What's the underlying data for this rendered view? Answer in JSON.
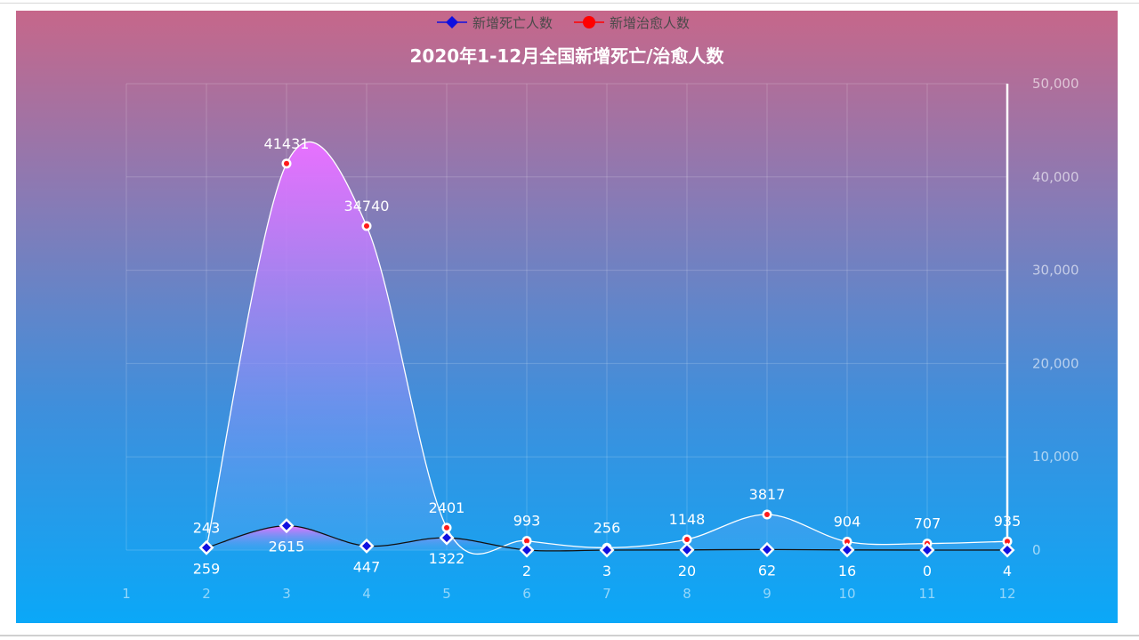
{
  "chart_data": {
    "type": "line",
    "title": "2020年1-12月全国新增死亡/治愈人数",
    "x": [
      "1",
      "2",
      "3",
      "4",
      "5",
      "6",
      "7",
      "8",
      "9",
      "10",
      "11",
      "12"
    ],
    "legend": {
      "placement": "top-center"
    },
    "yaxis": {
      "position": "right",
      "ylim": [
        0,
        50000
      ],
      "ticks": [
        "0",
        "10,000",
        "20,000",
        "30,000",
        "40,000",
        "50,000"
      ]
    },
    "grid": true,
    "series": [
      {
        "name": "新增死亡人数",
        "marker": "diamond",
        "legend_color": "#1010e0",
        "line_color": "#111111",
        "values": [
          null,
          259,
          2615,
          447,
          1322,
          2,
          3,
          20,
          62,
          16,
          0,
          4
        ],
        "labels": [
          "",
          "259",
          "2615",
          "447",
          "1322",
          "2",
          "3",
          "20",
          "62",
          "16",
          "0",
          "4"
        ]
      },
      {
        "name": "新增治愈人数",
        "marker": "circle",
        "legend_color": "#ff0000",
        "line_color": "#ffffff",
        "values": [
          null,
          243,
          41431,
          34740,
          2401,
          993,
          256,
          1148,
          3817,
          904,
          707,
          935
        ],
        "labels": [
          "",
          "243",
          "41431",
          "34740",
          "2401",
          "993",
          "256",
          "1148",
          "3817",
          "904",
          "707",
          "935"
        ]
      }
    ]
  }
}
